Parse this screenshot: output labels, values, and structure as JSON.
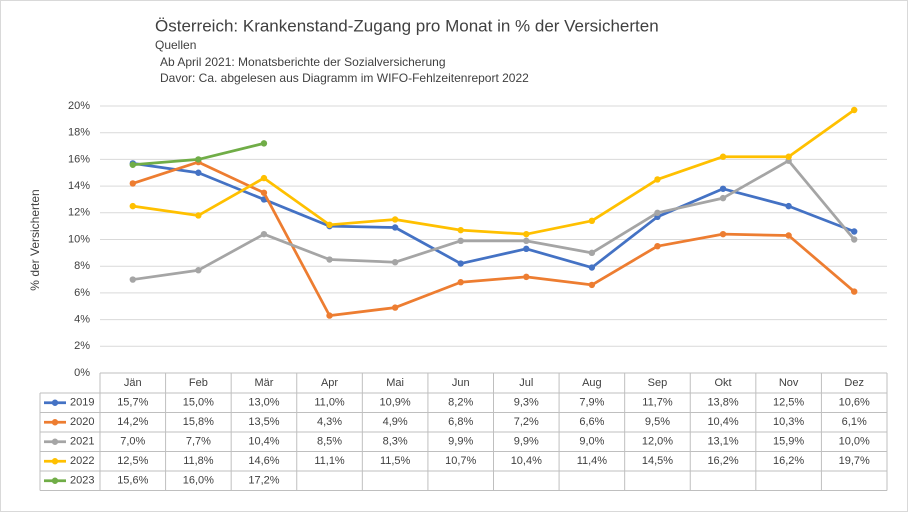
{
  "chart_data": {
    "type": "line",
    "title": "Österreich: Krankenstand-Zugang pro Monat in % der Versicherten",
    "subtitle": [
      "Quellen",
      "Ab April 2021: Monatsberichte der Sozialversicherung",
      "Davor: Ca. abgelesen aus Diagramm im WIFO-Fehlzeitenreport 2022"
    ],
    "y_label": "% der Versicherten",
    "categories": [
      "Jän",
      "Feb",
      "Mär",
      "Apr",
      "Mai",
      "Jun",
      "Jul",
      "Aug",
      "Sep",
      "Okt",
      "Nov",
      "Dez"
    ],
    "ylim": [
      0,
      20
    ],
    "yticks": [
      {
        "value": 0,
        "label": "0%"
      },
      {
        "value": 2,
        "label": "2%"
      },
      {
        "value": 4,
        "label": "4%"
      },
      {
        "value": 6,
        "label": "6%"
      },
      {
        "value": 8,
        "label": "8%"
      },
      {
        "value": 10,
        "label": "10%"
      },
      {
        "value": 12,
        "label": "12%"
      },
      {
        "value": 14,
        "label": "14%"
      },
      {
        "value": 16,
        "label": "16%"
      },
      {
        "value": 18,
        "label": "18%"
      },
      {
        "value": 20,
        "label": "20%"
      }
    ],
    "grid": true,
    "series": [
      {
        "name": "2019",
        "color": "#4472c4",
        "values": [
          15.7,
          15.0,
          13.0,
          11.0,
          10.9,
          8.2,
          9.3,
          7.9,
          11.7,
          13.8,
          12.5,
          10.6
        ],
        "value_labels": [
          "15,7%",
          "15,0%",
          "13,0%",
          "11,0%",
          "10,9%",
          "8,2%",
          "9,3%",
          "7,9%",
          "11,7%",
          "13,8%",
          "12,5%",
          "10,6%"
        ]
      },
      {
        "name": "2020",
        "color": "#ed7d31",
        "values": [
          14.2,
          15.8,
          13.5,
          4.3,
          4.9,
          6.8,
          7.2,
          6.6,
          9.5,
          10.4,
          10.3,
          6.1
        ],
        "value_labels": [
          "14,2%",
          "15,8%",
          "13,5%",
          "4,3%",
          "4,9%",
          "6,8%",
          "7,2%",
          "6,6%",
          "9,5%",
          "10,4%",
          "10,3%",
          "6,1%"
        ]
      },
      {
        "name": "2021",
        "color": "#a5a5a5",
        "values": [
          7.0,
          7.7,
          10.4,
          8.5,
          8.3,
          9.9,
          9.9,
          9.0,
          12.0,
          13.1,
          15.9,
          10.0
        ],
        "value_labels": [
          "7,0%",
          "7,7%",
          "10,4%",
          "8,5%",
          "8,3%",
          "9,9%",
          "9,9%",
          "9,0%",
          "12,0%",
          "13,1%",
          "15,9%",
          "10,0%"
        ]
      },
      {
        "name": "2022",
        "color": "#ffc000",
        "values": [
          12.5,
          11.8,
          14.6,
          11.1,
          11.5,
          10.7,
          10.4,
          11.4,
          14.5,
          16.2,
          16.2,
          19.7
        ],
        "value_labels": [
          "12,5%",
          "11,8%",
          "14,6%",
          "11,1%",
          "11,5%",
          "10,7%",
          "10,4%",
          "11,4%",
          "14,5%",
          "16,2%",
          "16,2%",
          "19,7%"
        ]
      },
      {
        "name": "2023",
        "color": "#70ad47",
        "values": [
          15.6,
          16.0,
          17.2,
          null,
          null,
          null,
          null,
          null,
          null,
          null,
          null,
          null
        ],
        "value_labels": [
          "15,6%",
          "16,0%",
          "17,2%",
          null,
          null,
          null,
          null,
          null,
          null,
          null,
          null,
          null
        ]
      }
    ]
  }
}
